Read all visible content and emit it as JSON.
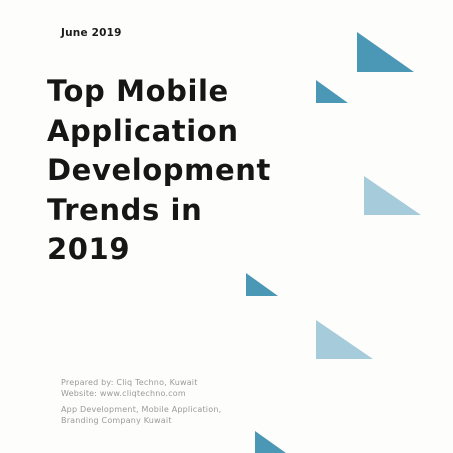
{
  "document": {
    "date": "June 2019",
    "title_lines": [
      "Top Mobile",
      "Application",
      "Development",
      "Trends in",
      "2019"
    ],
    "prepared_by": "Prepared by: Cliq Techno, Kuwait",
    "website": "Website: www.cliqtechno.com",
    "services_line1": "App Development, Mobile Application,",
    "services_line2": "Branding Company Kuwait"
  },
  "colors": {
    "accent_dark": "#4a97b6",
    "accent_light": "#a6ccdb",
    "title_text": "#161616",
    "meta_text": "#9a9a9a"
  }
}
